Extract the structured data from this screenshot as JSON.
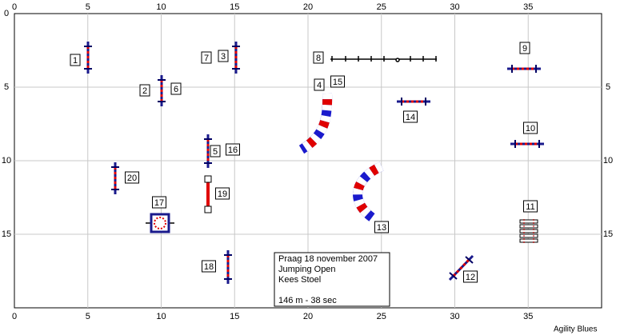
{
  "axes": {
    "xlim": [
      0,
      40
    ],
    "ylim": [
      0,
      20
    ],
    "xticks": [
      0,
      5,
      10,
      15,
      20,
      25,
      30,
      35
    ],
    "yticks_left": [
      0,
      5,
      10,
      15
    ],
    "yticks_right": [
      5,
      10,
      15
    ]
  },
  "obstacles": [
    "1",
    "2",
    "3",
    "4",
    "5",
    "6",
    "7",
    "8",
    "9",
    "10",
    "11",
    "12",
    "13",
    "14",
    "15",
    "16",
    "17",
    "18",
    "19",
    "20"
  ],
  "info": {
    "lines": [
      "Praag  18 november 2007",
      "Jumping Open",
      "Kees Stoel",
      "146 m - 38 sec"
    ]
  },
  "footer": "Agility Blues"
}
